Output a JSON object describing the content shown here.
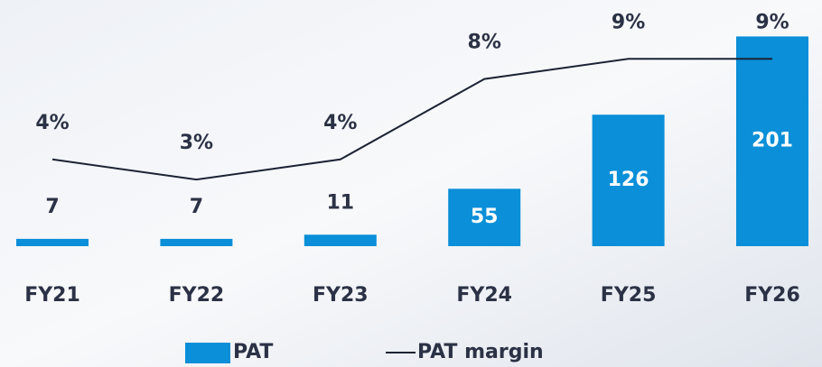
{
  "chart_data": {
    "type": "bar_line",
    "categories": [
      "FY21",
      "FY22",
      "FY23",
      "FY24",
      "FY25",
      "FY26"
    ],
    "series": [
      {
        "name": "PAT",
        "color": "#0a8fd8",
        "values": [
          7,
          7,
          11,
          55,
          126,
          201
        ]
      },
      {
        "name": "PAT margin",
        "color": "#1b2233",
        "axis": "y2",
        "values": [
          4,
          3,
          4,
          8,
          9,
          9
        ],
        "value_labels": [
          "4%",
          "3%",
          "4%",
          "8%",
          "9%",
          "9%"
        ]
      }
    ],
    "ylim": [
      0,
      210
    ],
    "y2lim": [
      0,
      10
    ],
    "legend": "bottom"
  }
}
